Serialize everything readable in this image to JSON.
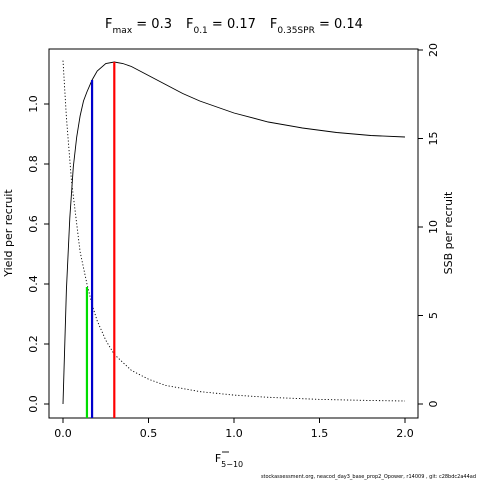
{
  "chart_data": {
    "type": "line",
    "title_parts": [
      {
        "main": "F",
        "sub": "max",
        "rest": " = 0.3"
      },
      {
        "main": "F",
        "sub": "0.1",
        "rest": " = 0.17"
      },
      {
        "main": "F",
        "sub": "0.35SPR",
        "rest": " = 0.14"
      }
    ],
    "xlabel": "F",
    "xlabel_sub": "5−10",
    "ylabel": "Yield per recruit",
    "y2label": "SSB per recruit",
    "xlim": [
      0,
      2
    ],
    "ylim": [
      0,
      1.14
    ],
    "y2lim": [
      0,
      20
    ],
    "xticks": [
      "0.0",
      "0.5",
      "1.0",
      "1.5",
      "2.0"
    ],
    "yticks": [
      "0.0",
      "0.2",
      "0.4",
      "0.6",
      "0.8",
      "1.0"
    ],
    "y2ticks": [
      "0",
      "5",
      "10",
      "15",
      "20"
    ],
    "ypr_series": {
      "x": [
        0,
        0.02,
        0.04,
        0.06,
        0.08,
        0.1,
        0.12,
        0.14,
        0.17,
        0.2,
        0.25,
        0.3,
        0.35,
        0.4,
        0.5,
        0.6,
        0.7,
        0.8,
        1.0,
        1.2,
        1.4,
        1.6,
        1.8,
        2.0
      ],
      "y": [
        0,
        0.38,
        0.62,
        0.79,
        0.89,
        0.96,
        1.01,
        1.04,
        1.08,
        1.11,
        1.135,
        1.14,
        1.135,
        1.125,
        1.095,
        1.065,
        1.035,
        1.01,
        0.97,
        0.94,
        0.92,
        0.905,
        0.895,
        0.89
      ]
    },
    "spr_series": {
      "x": [
        0,
        0.02,
        0.05,
        0.1,
        0.14,
        0.17,
        0.2,
        0.25,
        0.3,
        0.4,
        0.5,
        0.6,
        0.8,
        1.0,
        1.2,
        1.5,
        1.8,
        2.0
      ],
      "y": [
        19.4,
        16.2,
        12.6,
        8.6,
        6.8,
        5.6,
        4.7,
        3.6,
        2.8,
        1.9,
        1.4,
        1.05,
        0.7,
        0.5,
        0.38,
        0.26,
        0.2,
        0.17
      ]
    },
    "reference_lines": [
      {
        "x": 0.3,
        "y": 1.14,
        "color": "#ff0000"
      },
      {
        "x": 0.17,
        "y": 1.08,
        "color": "#0000cc"
      },
      {
        "x": 0.14,
        "y": 0.39,
        "color": "#00dd00"
      }
    ],
    "footnote": "stockassessment.org, neacod_day3_base_prop2_Opower, r14009 , git: c28bdc2a44ad"
  }
}
